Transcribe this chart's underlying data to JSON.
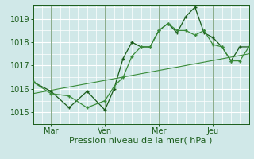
{
  "title": "",
  "xlabel": "Pression niveau de la mer( hPa )",
  "ylabel": "",
  "bg_color": "#d0e8e8",
  "grid_color": "#ffffff",
  "line_color_main": "#1a5c1a",
  "line_color_trend": "#3a8c3a",
  "yticks": [
    1015,
    1016,
    1017,
    1018,
    1019
  ],
  "ylim": [
    1014.5,
    1019.6
  ],
  "xtick_labels": [
    "Mar",
    "Ven",
    "Mer",
    "Jeu"
  ],
  "xtick_pos": [
    0.083,
    0.333,
    0.583,
    0.833
  ],
  "xlim": [
    0.0,
    1.0
  ],
  "series1_x": [
    0.0,
    0.083,
    0.167,
    0.25,
    0.333,
    0.375,
    0.417,
    0.458,
    0.5,
    0.542,
    0.583,
    0.625,
    0.667,
    0.708,
    0.75,
    0.792,
    0.833,
    0.875,
    0.917,
    0.958,
    1.0
  ],
  "series1_y": [
    1016.3,
    1015.9,
    1015.2,
    1015.9,
    1015.1,
    1016.0,
    1017.3,
    1018.0,
    1017.8,
    1017.8,
    1018.5,
    1018.8,
    1018.4,
    1019.1,
    1019.5,
    1018.4,
    1018.2,
    1017.8,
    1017.2,
    1017.8,
    1017.8
  ],
  "series2_x": [
    0.0,
    0.083,
    0.167,
    0.25,
    0.333,
    0.375,
    0.417,
    0.458,
    0.5,
    0.542,
    0.583,
    0.625,
    0.667,
    0.708,
    0.75,
    0.792,
    0.833,
    0.875,
    0.917,
    0.958,
    1.0
  ],
  "series2_y": [
    1016.3,
    1015.8,
    1015.7,
    1015.2,
    1015.5,
    1016.1,
    1016.5,
    1017.4,
    1017.8,
    1017.8,
    1018.5,
    1018.8,
    1018.5,
    1018.5,
    1018.3,
    1018.5,
    1017.9,
    1017.8,
    1017.2,
    1017.2,
    1017.8
  ],
  "trend_x": [
    0.0,
    1.0
  ],
  "trend_y": [
    1015.8,
    1017.5
  ],
  "marker_style": "+",
  "marker_size": 3.5,
  "linewidth": 0.9,
  "trend_linewidth": 0.8,
  "font_color": "#1a5c1a",
  "xlabel_fontsize": 8,
  "tick_fontsize": 7
}
